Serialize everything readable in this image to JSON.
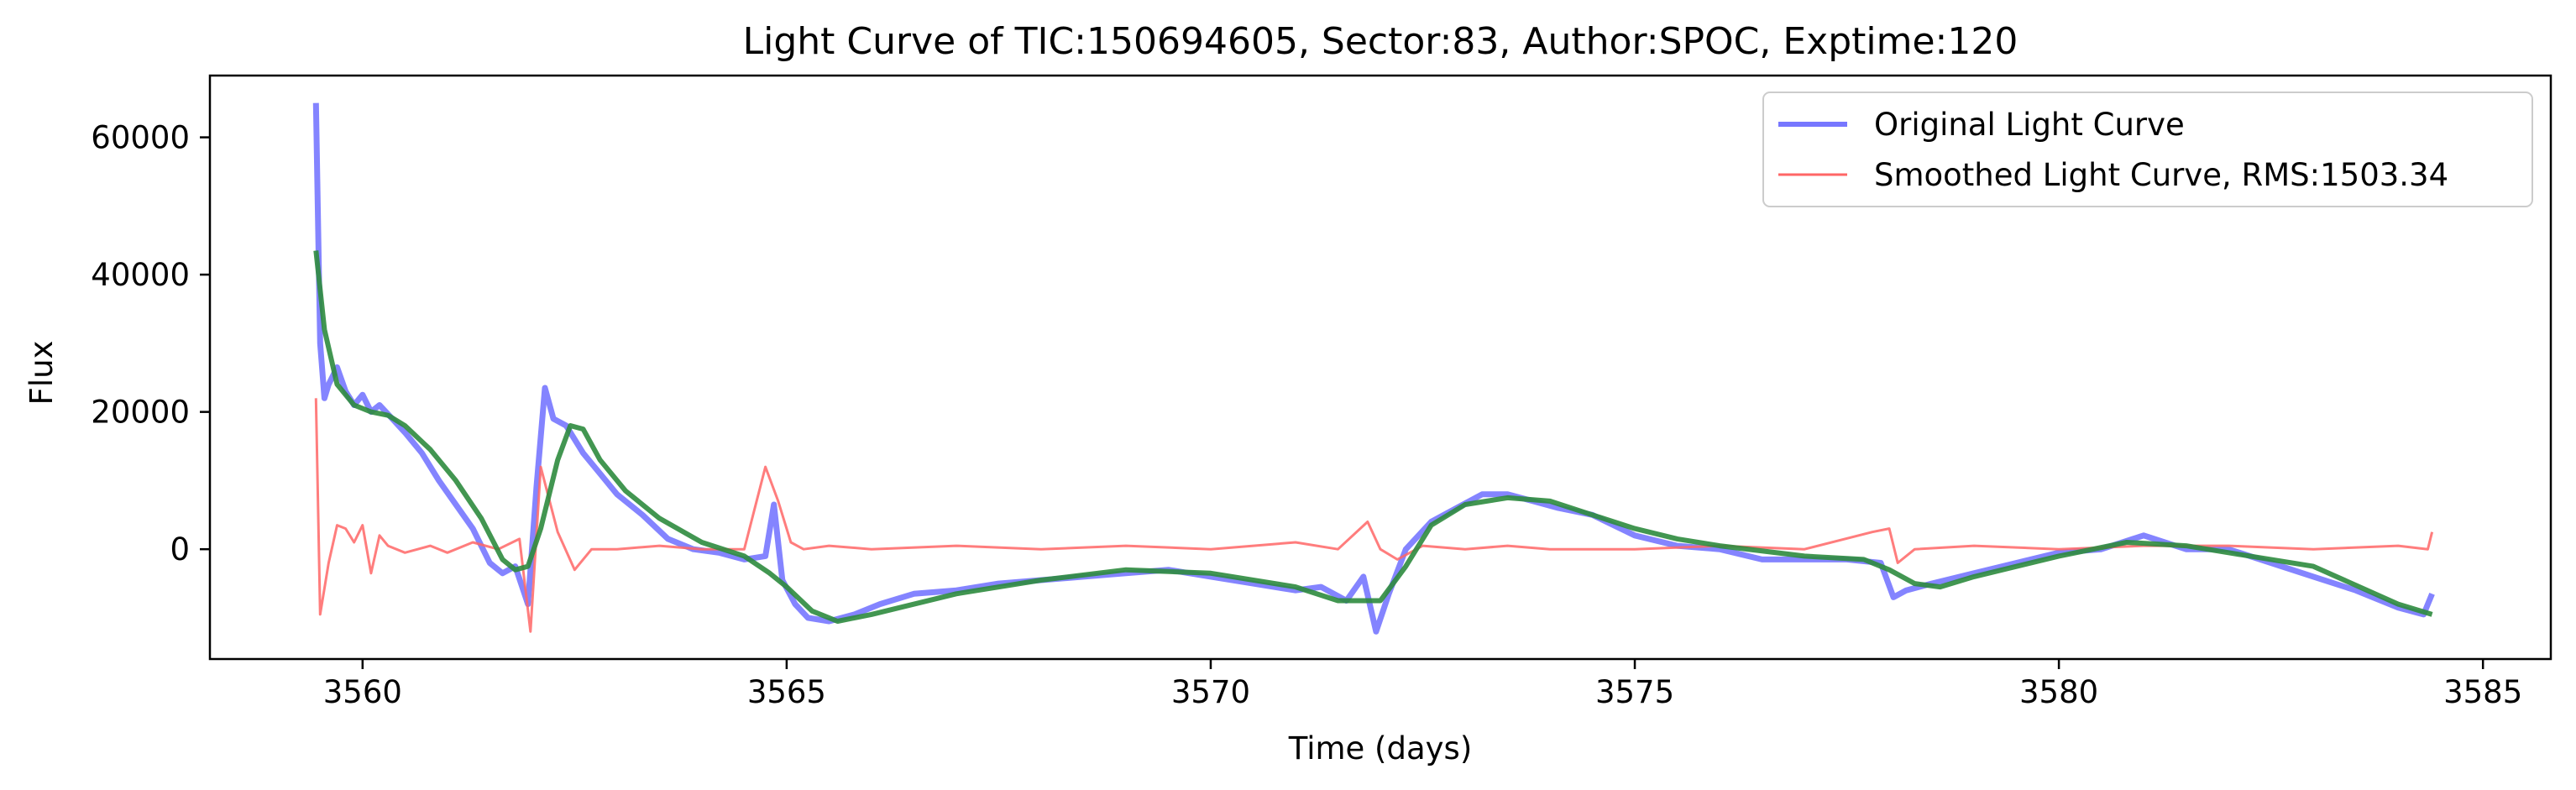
{
  "chart_data": {
    "type": "line",
    "title": "Light Curve of TIC:150694605, Sector:83, Author:SPOC, Exptime:120",
    "xlabel": "Time (days)",
    "ylabel": "Flux",
    "xlim": [
      3558.2,
      3585.8
    ],
    "ylim": [
      -16000,
      69000
    ],
    "xticks": [
      3560,
      3565,
      3570,
      3575,
      3580,
      3585
    ],
    "xtick_labels": [
      "3560",
      "3565",
      "3570",
      "3575",
      "3580",
      "3585"
    ],
    "yticks": [
      0,
      20000,
      40000,
      60000
    ],
    "ytick_labels": [
      "0",
      "20000",
      "40000",
      "60000"
    ],
    "grid": false,
    "legend_position": "top-right",
    "series": [
      {
        "name": "Original Light Curve",
        "color": "#7777ff",
        "in_legend": true,
        "x": [
          3559.45,
          3559.5,
          3559.55,
          3559.6,
          3559.7,
          3559.8,
          3559.9,
          3560.0,
          3560.1,
          3560.2,
          3560.35,
          3560.5,
          3560.7,
          3560.9,
          3561.1,
          3561.3,
          3561.5,
          3561.65,
          3561.8,
          3561.95,
          3562.05,
          3562.15,
          3562.25,
          3562.4,
          3562.6,
          3562.8,
          3563.0,
          3563.3,
          3563.6,
          3563.9,
          3564.2,
          3564.5,
          3564.75,
          3564.85,
          3564.95,
          3565.1,
          3565.25,
          3565.5,
          3565.8,
          3566.1,
          3566.5,
          3567.0,
          3567.5,
          3568.0,
          3568.5,
          3569.0,
          3569.5,
          3570.0,
          3570.5,
          3571.0,
          3571.3,
          3571.6,
          3571.8,
          3571.95,
          3572.1,
          3572.3,
          3572.6,
          3572.9,
          3573.2,
          3573.5,
          3573.8,
          3574.1,
          3574.5,
          3575.0,
          3575.5,
          3576.0,
          3576.5,
          3577.0,
          3577.5,
          3577.9,
          3578.05,
          3578.2,
          3578.5,
          3579.0,
          3579.5,
          3580.0,
          3580.5,
          3581.0,
          3581.5,
          3582.0,
          3582.5,
          3583.0,
          3583.5,
          3584.0,
          3584.3,
          3584.4
        ],
        "y": [
          65000,
          30000,
          22000,
          24000,
          26500,
          23000,
          21000,
          22500,
          20000,
          21000,
          19000,
          17000,
          14000,
          10000,
          6500,
          3000,
          -2000,
          -3500,
          -2500,
          -8000,
          9000,
          23500,
          19000,
          18000,
          14000,
          11000,
          8000,
          5000,
          1500,
          0,
          -500,
          -1500,
          -1000,
          6500,
          -4500,
          -8000,
          -10000,
          -10500,
          -9500,
          -8000,
          -6500,
          -6000,
          -5000,
          -4500,
          -4000,
          -3500,
          -3000,
          -4000,
          -5000,
          -6000,
          -5500,
          -7500,
          -4000,
          -12000,
          -6500,
          0,
          4000,
          6000,
          8000,
          8000,
          7000,
          6000,
          5000,
          2000,
          500,
          0,
          -1500,
          -1500,
          -1500,
          -2000,
          -7000,
          -6000,
          -5000,
          -3500,
          -2000,
          -500,
          0,
          2000,
          0,
          0,
          -2000,
          -4000,
          -6000,
          -8500,
          -9500,
          -6500
        ]
      },
      {
        "name": "Smoothed Light Curve, RMS:1503.34",
        "color": "#ff6666",
        "in_legend": true,
        "x": [
          3559.45,
          3559.5,
          3559.6,
          3559.7,
          3559.8,
          3559.9,
          3560.0,
          3560.1,
          3560.2,
          3560.3,
          3560.5,
          3560.8,
          3561.0,
          3561.3,
          3561.6,
          3561.85,
          3561.98,
          3562.1,
          3562.3,
          3562.5,
          3562.7,
          3563.0,
          3563.5,
          3564.0,
          3564.5,
          3564.75,
          3564.9,
          3565.05,
          3565.2,
          3565.5,
          3566.0,
          3567.0,
          3568.0,
          3569.0,
          3570.0,
          3571.0,
          3571.5,
          3571.85,
          3572.0,
          3572.2,
          3572.5,
          3573.0,
          3573.5,
          3574.0,
          3575.0,
          3576.0,
          3577.0,
          3577.8,
          3578.0,
          3578.1,
          3578.3,
          3579.0,
          3580.0,
          3581.0,
          3582.0,
          3583.0,
          3584.0,
          3584.35,
          3584.4
        ],
        "y": [
          22000,
          -9500,
          -2000,
          3500,
          3000,
          1000,
          3500,
          -3500,
          2000,
          500,
          -500,
          500,
          -500,
          1000,
          0,
          1500,
          -12000,
          12000,
          2500,
          -3000,
          0,
          0,
          500,
          0,
          0,
          12000,
          7000,
          1000,
          0,
          500,
          0,
          500,
          0,
          500,
          0,
          1000,
          0,
          4000,
          0,
          -1500,
          500,
          0,
          500,
          0,
          0,
          500,
          0,
          2500,
          3000,
          -2000,
          0,
          500,
          0,
          500,
          500,
          0,
          500,
          0,
          2500
        ]
      },
      {
        "name": "Trend",
        "color": "#2e8b3e",
        "in_legend": false,
        "x": [
          3559.45,
          3559.55,
          3559.7,
          3559.9,
          3560.1,
          3560.3,
          3560.5,
          3560.8,
          3561.1,
          3561.4,
          3561.65,
          3561.8,
          3561.95,
          3562.1,
          3562.3,
          3562.45,
          3562.6,
          3562.8,
          3563.1,
          3563.5,
          3564.0,
          3564.5,
          3564.8,
          3565.0,
          3565.3,
          3565.6,
          3566.0,
          3567.0,
          3568.0,
          3569.0,
          3570.0,
          3571.0,
          3571.5,
          3572.0,
          3572.3,
          3572.6,
          3573.0,
          3573.5,
          3574.0,
          3574.5,
          3575.0,
          3575.5,
          3576.0,
          3577.0,
          3577.7,
          3578.0,
          3578.3,
          3578.6,
          3579.0,
          3580.0,
          3580.8,
          3581.5,
          3582.0,
          3583.0,
          3584.0,
          3584.4
        ],
        "y": [
          43500,
          32000,
          24000,
          21000,
          20000,
          19500,
          18000,
          14500,
          10000,
          4500,
          -1500,
          -3000,
          -2500,
          3000,
          13000,
          18000,
          17500,
          13000,
          8500,
          4500,
          1000,
          -1000,
          -3500,
          -5500,
          -9000,
          -10500,
          -9500,
          -6500,
          -4500,
          -3000,
          -3500,
          -5500,
          -7500,
          -7500,
          -2500,
          3500,
          6500,
          7500,
          7000,
          5000,
          3000,
          1500,
          500,
          -1000,
          -1500,
          -3000,
          -5000,
          -5500,
          -4000,
          -1000,
          1000,
          500,
          -500,
          -2500,
          -8000,
          -9500
        ]
      }
    ],
    "legend": {
      "entries": [
        "Original Light Curve",
        "Smoothed Light Curve, RMS:1503.34"
      ],
      "colors": [
        "#7777ff",
        "#ff6666"
      ]
    }
  }
}
